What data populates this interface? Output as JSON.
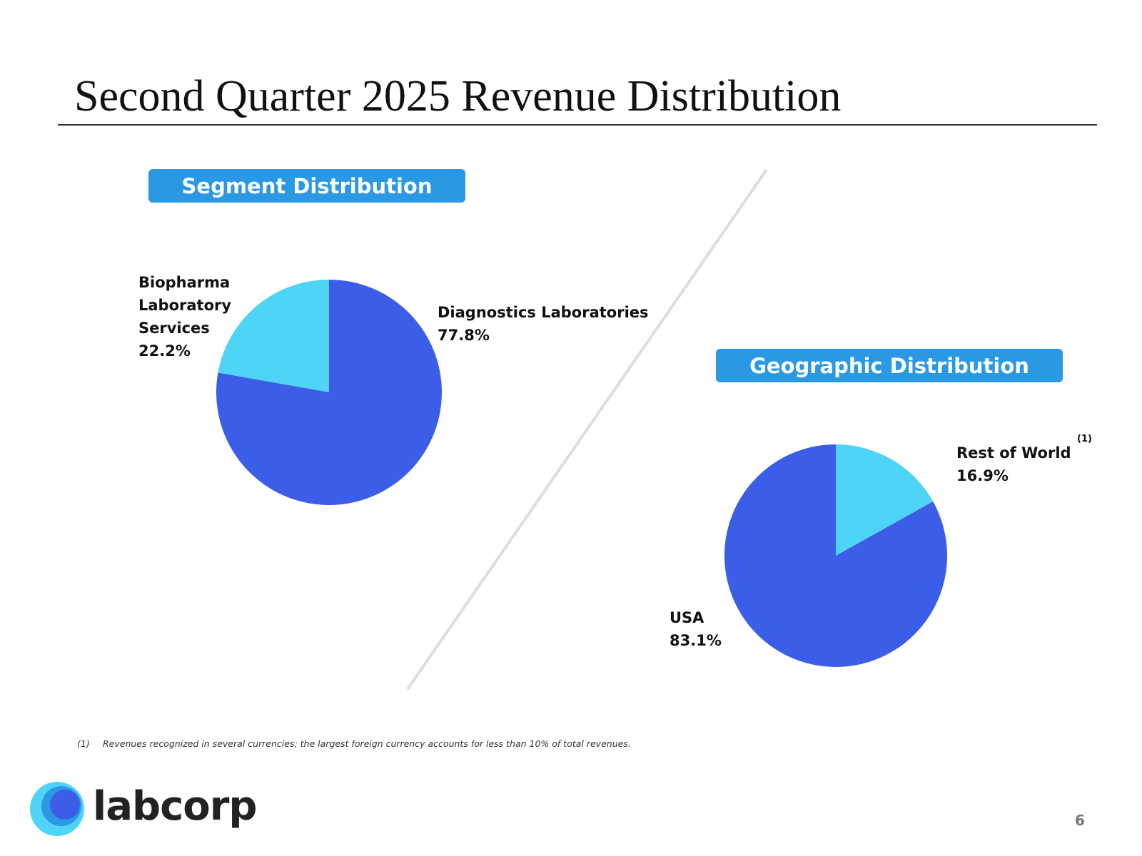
{
  "slide": {
    "title": "Second Quarter 2025 Revenue Distribution",
    "page_number": "6",
    "footnote_marker": "(1)",
    "footnote_text": "Revenues recognized in several currencies; the largest foreign currency accounts for less than 10% of total revenues.",
    "logo_text": "labcorp"
  },
  "colors": {
    "primary_slice": "#3b5de7",
    "secondary_slice": "#4dd4f7",
    "header_box": "#2a98e2",
    "divider": "#dddddd"
  },
  "chart_data": [
    {
      "type": "pie",
      "title": "Segment Distribution",
      "slices": [
        {
          "label_lines": [
            "Diagnostics Laboratories"
          ],
          "value_label": "77.8%",
          "value": 77.8,
          "color": "#3b5de7"
        },
        {
          "label_lines": [
            "Biopharma",
            "Laboratory",
            "Services"
          ],
          "value_label": "22.2%",
          "value": 22.2,
          "color": "#4dd4f7"
        }
      ]
    },
    {
      "type": "pie",
      "title": "Geographic Distribution",
      "slices": [
        {
          "label_lines": [
            "Rest of World"
          ],
          "value_label": "16.9%",
          "value": 16.9,
          "color": "#4dd4f7",
          "footnote_ref": "(1)"
        },
        {
          "label_lines": [
            "USA"
          ],
          "value_label": "83.1%",
          "value": 83.1,
          "color": "#3b5de7"
        }
      ]
    }
  ]
}
